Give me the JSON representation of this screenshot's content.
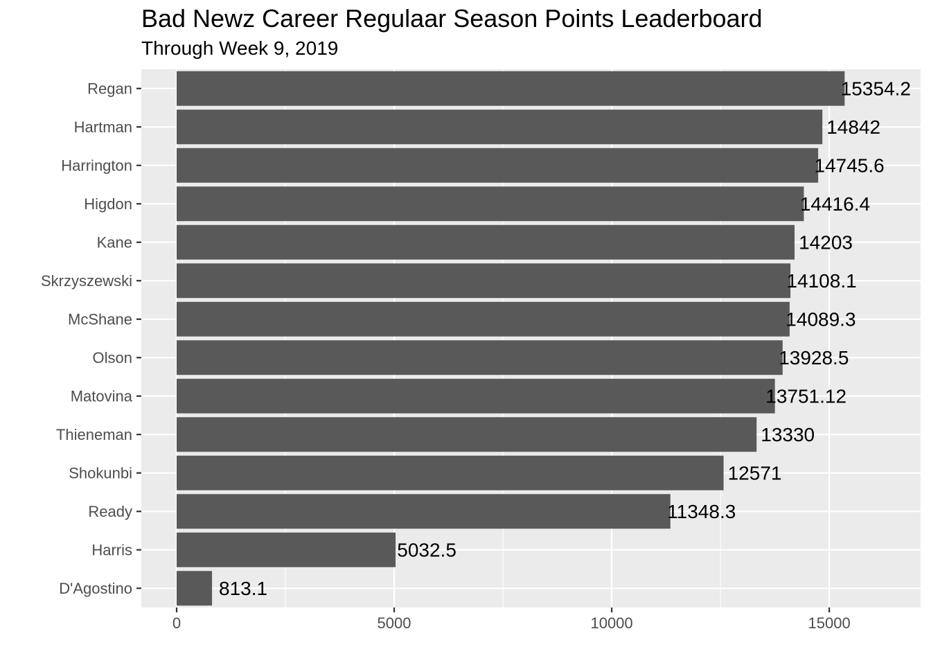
{
  "chart_data": {
    "type": "bar",
    "orientation": "horizontal",
    "title": "Bad Newz Career Regulaar Season Points Leaderboard",
    "subtitle": "Through Week 9, 2019",
    "xlabel": "",
    "ylabel": "",
    "categories": [
      "Regan",
      "Hartman",
      "Harrington",
      "Higdon",
      "Kane",
      "Skrzyszewski",
      "McShane",
      "Olson",
      "Matovina",
      "Thieneman",
      "Shokunbi",
      "Ready",
      "Harris",
      "D'Agostino"
    ],
    "values": [
      15354.2,
      14842,
      14745.6,
      14416.4,
      14203,
      14108.1,
      14089.3,
      13928.5,
      13751.12,
      13330,
      12571,
      11348.3,
      5032.5,
      813.1
    ],
    "data_labels": [
      "15354.2",
      "14842",
      "14745.6",
      "14416.4",
      "14203",
      "14108.1",
      "14089.3",
      "13928.5",
      "13751.12",
      "13330",
      "12571",
      "11348.3",
      "5032.5",
      "813.1"
    ],
    "x_ticks": [
      "0",
      "5000",
      "10000",
      "15000"
    ],
    "x_tick_values": [
      0,
      5000,
      10000,
      15000
    ],
    "xlim": [
      -812,
      17100
    ],
    "grid": true,
    "bar_color": "#595959",
    "panel_color": "#ebebeb",
    "gridline_color": "#ffffff"
  }
}
